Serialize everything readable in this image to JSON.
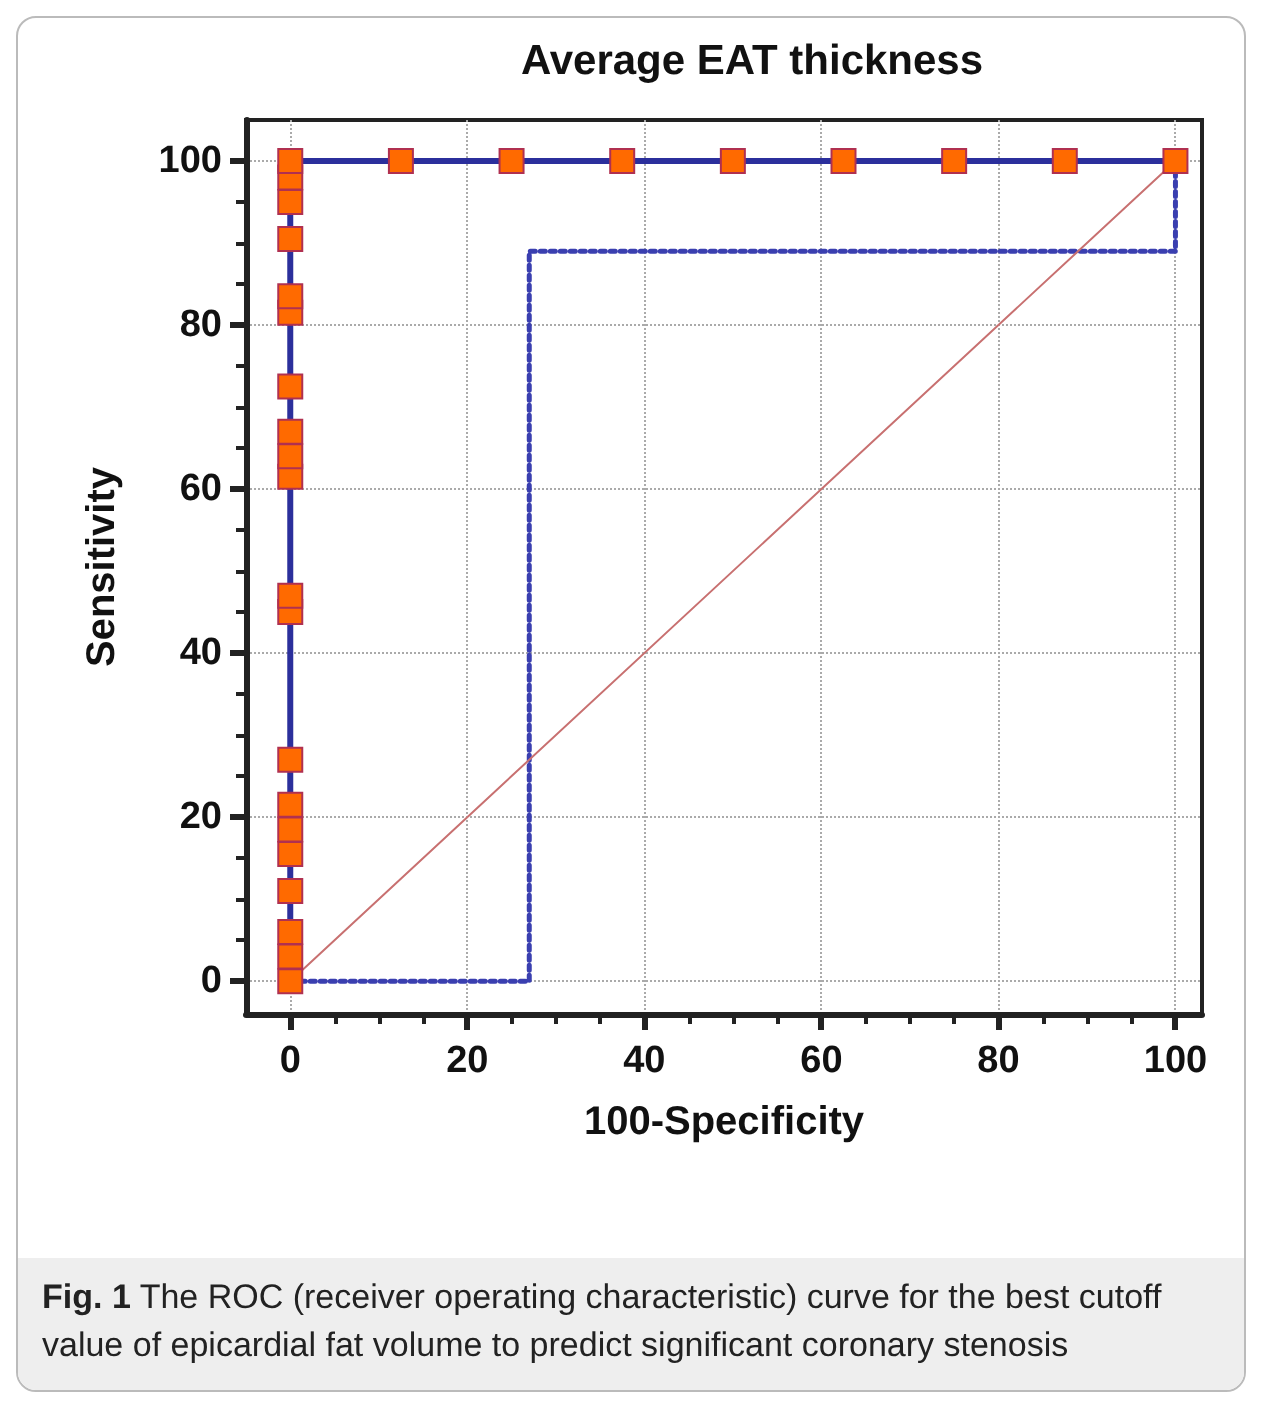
{
  "chart_data": {
    "type": "line",
    "title": "Average EAT thickness",
    "xlabel": "100-Specificity",
    "ylabel": "Sensitivity",
    "xlim": [
      -5,
      103
    ],
    "ylim": [
      -4,
      105
    ],
    "xticks": [
      0,
      20,
      40,
      60,
      80,
      100
    ],
    "yticks": [
      0,
      20,
      40,
      60,
      80,
      100
    ],
    "grid": true,
    "series": [
      {
        "color": "#2b2f9c",
        "marker": "square",
        "line_style": "solid",
        "x": [
          0,
          0,
          0,
          0,
          0,
          0,
          0,
          0,
          0,
          0,
          0,
          0,
          0,
          0,
          0,
          0,
          0,
          0,
          0,
          0,
          12.5,
          25,
          37.5,
          50,
          62.5,
          75,
          87.5,
          100
        ],
        "values": [
          0,
          3,
          6,
          11,
          15.5,
          18.5,
          21.5,
          27,
          45,
          47,
          61.5,
          64,
          67,
          72.5,
          81.5,
          83.5,
          90.5,
          95,
          98,
          100,
          100,
          100,
          100,
          100,
          100,
          100,
          100,
          100
        ]
      },
      {
        "color": "#3a3fb0",
        "marker": "none",
        "line_style": "dotted",
        "x": [
          0,
          27,
          27,
          100,
          100
        ],
        "values": [
          0,
          0,
          89,
          89,
          100
        ]
      },
      {
        "color": "#c87070",
        "marker": "none",
        "line_style": "solid",
        "x": [
          0,
          100
        ],
        "values": [
          0,
          100
        ]
      }
    ],
    "annotations": [
      "Fig. 1 The ROC (receiver operating characteristic) curve for the best cutoff value of epicardial fat volume to predict significant coronary stenosis"
    ]
  }
}
